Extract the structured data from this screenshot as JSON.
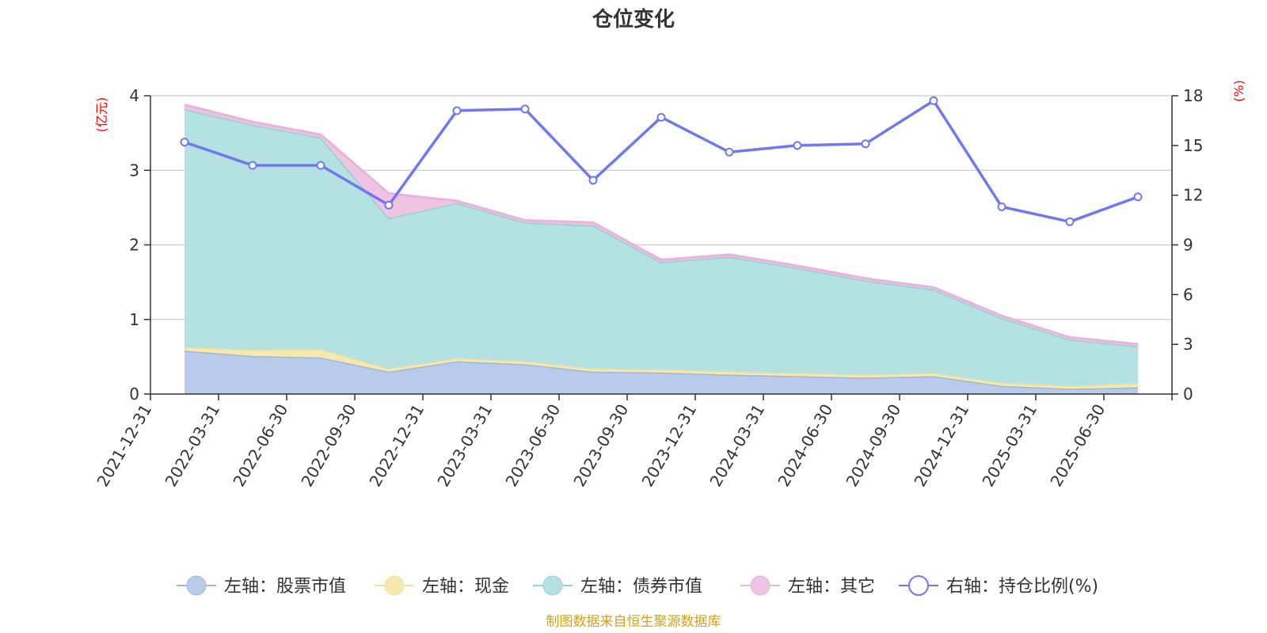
{
  "chart_data": {
    "type": "area",
    "title": "仓位变化",
    "left_axis_unit": "(亿元)",
    "right_axis_unit": "(%)",
    "categories": [
      "2021-12-31",
      "2022-03-31",
      "2022-06-30",
      "2022-09-30",
      "2022-12-31",
      "2023-03-31",
      "2023-06-30",
      "2023-09-30",
      "2023-12-31",
      "2024-03-31",
      "2024-06-30",
      "2024-09-30",
      "2024-12-31",
      "2025-03-31",
      "2025-06-30"
    ],
    "y_left": {
      "min": 0,
      "max": 4,
      "ticks": [
        0,
        1,
        2,
        3,
        4
      ]
    },
    "y_right": {
      "min": 0,
      "max": 18,
      "ticks": [
        0,
        3,
        6,
        9,
        12,
        15,
        18
      ]
    },
    "stacked_series": [
      {
        "name": "左轴：股票市值",
        "color": "#9db8e0",
        "fill": "#b8cbeb",
        "values": [
          0.58,
          0.51,
          0.49,
          0.3,
          0.44,
          0.4,
          0.3,
          0.29,
          0.26,
          0.24,
          0.22,
          0.24,
          0.11,
          0.07,
          0.09
        ]
      },
      {
        "name": "左轴：现金",
        "color": "#f5e09a",
        "fill": "#f7e8b0",
        "values": [
          0.05,
          0.08,
          0.11,
          0.04,
          0.04,
          0.04,
          0.04,
          0.04,
          0.04,
          0.04,
          0.04,
          0.04,
          0.04,
          0.04,
          0.05
        ]
      },
      {
        "name": "左轴：债券市值",
        "color": "#8fd3d3",
        "fill": "#b4e1e1",
        "values": [
          3.19,
          3.02,
          2.84,
          2.02,
          2.08,
          1.86,
          1.92,
          1.44,
          1.54,
          1.41,
          1.26,
          1.12,
          0.87,
          0.62,
          0.5
        ]
      },
      {
        "name": "左轴：其它",
        "color": "#e8b4dc",
        "fill": "#efc3e2",
        "values": [
          0.06,
          0.04,
          0.04,
          0.33,
          0.03,
          0.03,
          0.04,
          0.03,
          0.03,
          0.03,
          0.03,
          0.03,
          0.03,
          0.03,
          0.03
        ]
      }
    ],
    "line_series": {
      "name": "右轴：持仓比例(%)",
      "color": "#7177f2",
      "values": [
        15.2,
        13.8,
        13.8,
        11.4,
        17.1,
        17.2,
        12.9,
        16.7,
        14.6,
        15.0,
        15.1,
        17.7,
        11.3,
        10.4,
        11.9
      ]
    },
    "grid": true,
    "legend_position": "bottom"
  },
  "footer": {
    "source_text": "制图数据来自恒生聚源数据库"
  }
}
